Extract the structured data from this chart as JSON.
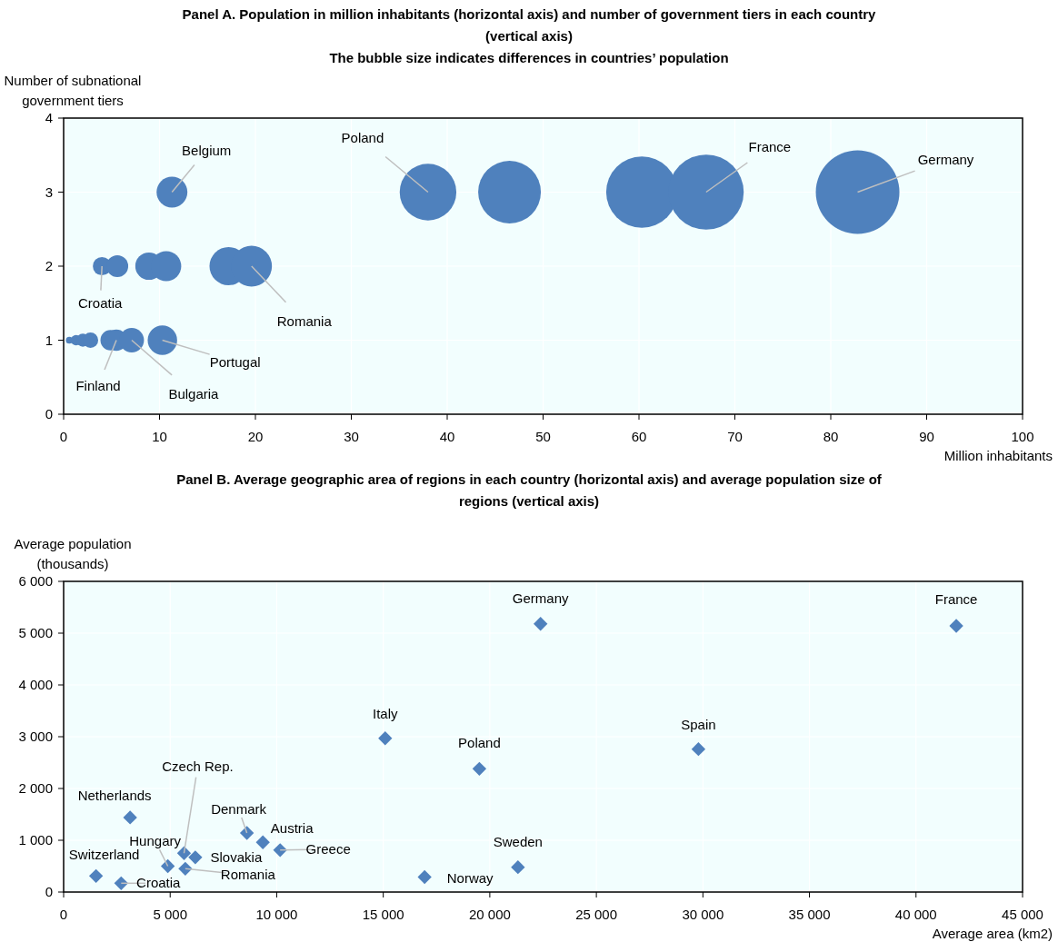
{
  "chart_data": [
    {
      "type": "bubble",
      "title": "Panel A. Population in million inhabitants (horizontal axis) and number of government tiers in each country (vertical axis)",
      "subtitle": "The bubble size indicates differences in countries’ population",
      "xlabel": "Million inhabitants",
      "ylabel": "Number of subnational government tiers",
      "xlim": [
        0,
        100
      ],
      "xticks": [
        0,
        10,
        20,
        30,
        40,
        50,
        60,
        70,
        80,
        90,
        100
      ],
      "ylim": [
        0,
        4
      ],
      "yticks": [
        0,
        1,
        2,
        3,
        4
      ],
      "grid": true,
      "series": [
        {
          "color": "#4f81bd",
          "x": [
            0.6,
            1.3,
            2.0,
            2.8,
            4.9,
            5.5,
            7.1,
            10.3
          ],
          "values": [
            1,
            1,
            1,
            1,
            1,
            1,
            1,
            1
          ],
          "sizes": [
            0.007,
            0.016,
            0.024,
            0.034,
            0.059,
            0.066,
            0.086,
            0.124
          ]
        },
        {
          "color": "#4f81bd",
          "x": [
            4.0,
            5.6,
            8.9,
            10.7,
            17.2,
            19.6
          ],
          "values": [
            2,
            2,
            2,
            2,
            2,
            2
          ],
          "sizes": [
            0.048,
            0.068,
            0.107,
            0.129,
            0.208,
            0.237
          ]
        },
        {
          "color": "#4f81bd",
          "x": [
            11.3,
            38,
            46.5,
            60.3,
            67,
            82.8
          ],
          "values": [
            3,
            3,
            3,
            3,
            3,
            3
          ],
          "sizes": [
            0.136,
            0.459,
            0.562,
            0.728,
            0.809,
            1
          ]
        }
      ],
      "annotations": [
        {
          "text": "Belgium",
          "x": 11.3,
          "y": 3
        },
        {
          "text": "Poland",
          "x": 38,
          "y": 3
        },
        {
          "text": "France",
          "x": 67,
          "y": 3
        },
        {
          "text": "Germany",
          "x": 82.8,
          "y": 3
        },
        {
          "text": "Croatia",
          "x": 4.0,
          "y": 2
        },
        {
          "text": "Romania",
          "x": 19.6,
          "y": 2
        },
        {
          "text": "Finland",
          "x": 5.5,
          "y": 1
        },
        {
          "text": "Bulgaria",
          "x": 7.1,
          "y": 1
        },
        {
          "text": "Portugal",
          "x": 10.3,
          "y": 1
        }
      ]
    },
    {
      "type": "scatter",
      "title": "Panel B. Average geographic area of regions in each country (horizontal axis) and average population size of regions (vertical axis)",
      "xlabel": "Average area (km2)",
      "ylabel": "Average population (thousands)",
      "xlim": [
        0,
        45000
      ],
      "xticks": [
        0,
        {
          "value": 5000,
          "label": "5 000"
        },
        {
          "value": 10000,
          "label": "10 000"
        },
        {
          "value": 15000,
          "label": "15 000"
        },
        {
          "value": 20000,
          "label": "20 000"
        },
        {
          "value": 25000,
          "label": "25 000"
        },
        {
          "value": 30000,
          "label": "30 000"
        },
        {
          "value": 35000,
          "label": "35 000"
        },
        {
          "value": 40000,
          "label": "40 000"
        },
        {
          "value": 45000,
          "label": "45 000"
        }
      ],
      "ylim": [
        0,
        6000
      ],
      "yticks": [
        0,
        {
          "value": 1000,
          "label": "1 000"
        },
        {
          "value": 2000,
          "label": "2 000"
        },
        {
          "value": 3000,
          "label": "3 000"
        },
        {
          "value": 4000,
          "label": "4 000"
        },
        {
          "value": 5000,
          "label": "5 000"
        },
        {
          "value": 6000,
          "label": "6 000"
        }
      ],
      "grid": true,
      "marker": "diamond",
      "series": [
        {
          "color": "#4f81bd",
          "x": [
            1520,
            2700,
            3120,
            4890,
            5650,
            5710,
            6180,
            8600,
            9350,
            10160,
            15090,
            16940,
            19510,
            21320,
            22380,
            29790,
            41890
          ],
          "values": [
            310,
            170,
            1440,
            500,
            750,
            450,
            670,
            1140,
            960,
            810,
            2970,
            290,
            2380,
            480,
            5180,
            2760,
            5140
          ]
        }
      ],
      "annotations": [
        {
          "text": "Switzerland",
          "x": 1520,
          "y": 310
        },
        {
          "text": "Croatia",
          "x": 2700,
          "y": 170
        },
        {
          "text": "Netherlands",
          "x": 3120,
          "y": 1440
        },
        {
          "text": "Hungary",
          "x": 4890,
          "y": 500
        },
        {
          "text": "Czech Rep.",
          "x": 5650,
          "y": 750
        },
        {
          "text": "Romania",
          "x": 5710,
          "y": 450
        },
        {
          "text": "Slovakia",
          "x": 6180,
          "y": 670
        },
        {
          "text": "Denmark",
          "x": 8600,
          "y": 1140
        },
        {
          "text": "Austria",
          "x": 9350,
          "y": 960
        },
        {
          "text": "Greece",
          "x": 10160,
          "y": 810
        },
        {
          "text": "Italy",
          "x": 15090,
          "y": 2970
        },
        {
          "text": "Norway",
          "x": 16940,
          "y": 290
        },
        {
          "text": "Poland",
          "x": 19510,
          "y": 2380
        },
        {
          "text": "Sweden",
          "x": 21320,
          "y": 480
        },
        {
          "text": "Germany",
          "x": 22380,
          "y": 5180
        },
        {
          "text": "Spain",
          "x": 29790,
          "y": 2760
        },
        {
          "text": "France",
          "x": 41890,
          "y": 5140
        }
      ]
    }
  ]
}
